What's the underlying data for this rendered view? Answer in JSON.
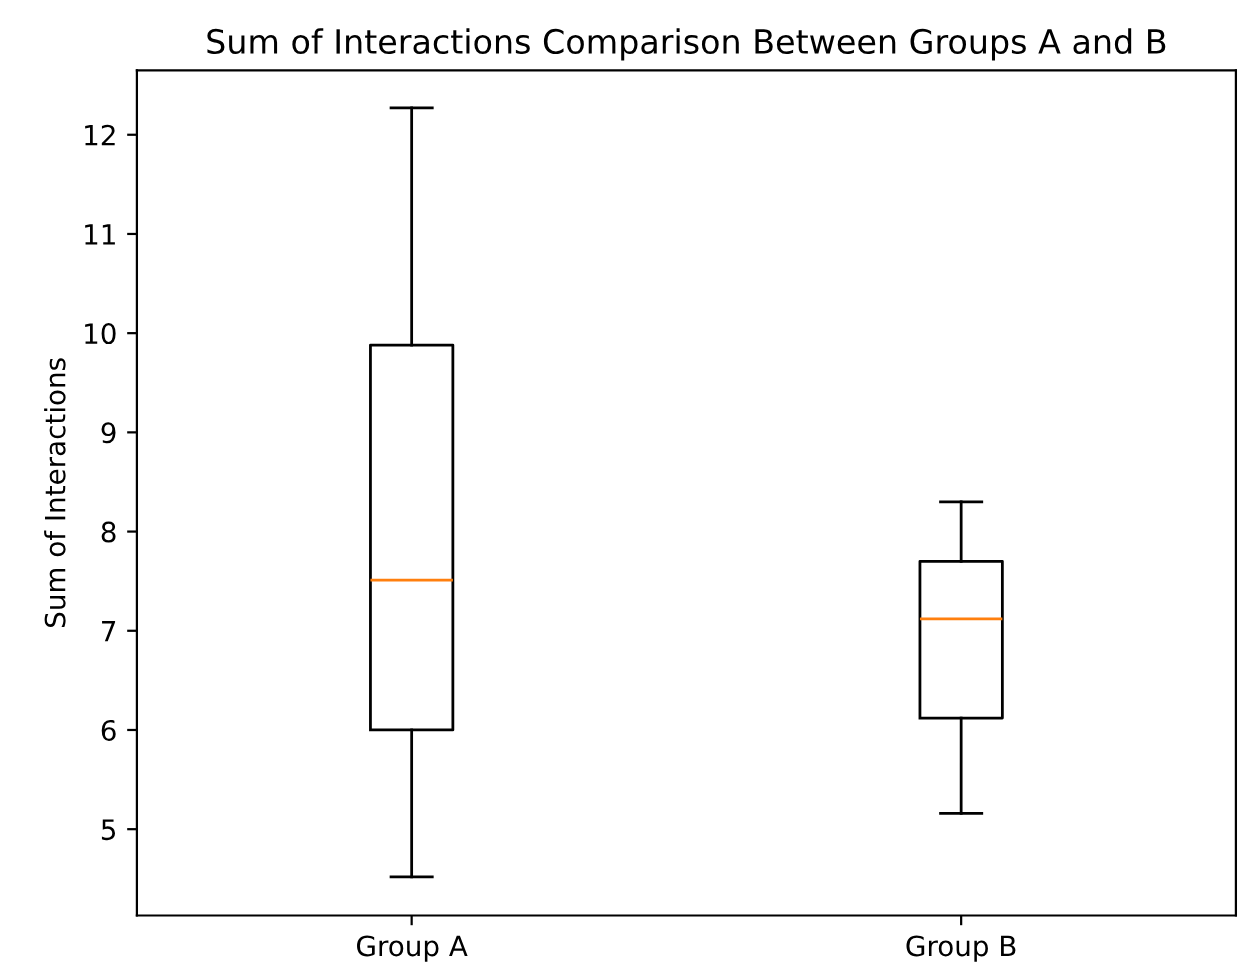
{
  "chart_data": {
    "type": "box",
    "title": "Sum of Interactions Comparison Between Groups A and B",
    "ylabel": "Sum of Interactions",
    "categories": [
      "Group A",
      "Group B"
    ],
    "boxes": [
      {
        "low": 4.52,
        "q1": 6.0,
        "median": 7.51,
        "q3": 9.88,
        "high": 12.27
      },
      {
        "low": 5.16,
        "q1": 6.12,
        "median": 7.12,
        "q3": 7.7,
        "high": 8.3
      }
    ],
    "color": "#000000",
    "ylim": [
      4.13,
      12.65
    ],
    "yticks": [
      5,
      6,
      7,
      8,
      9,
      10,
      11,
      12
    ],
    "grid": false
  }
}
